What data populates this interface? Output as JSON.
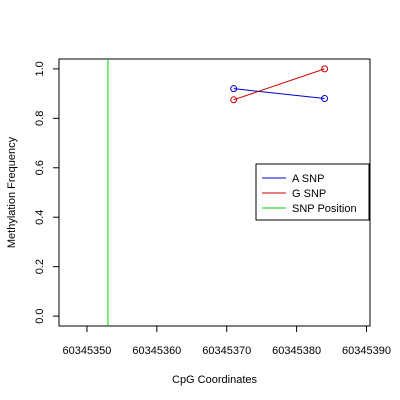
{
  "chart_data": {
    "type": "line",
    "title": "",
    "xlabel": "CpG Coordinates",
    "ylabel": "Methylation Frequency",
    "xlim": [
      60345346,
      60345390.5
    ],
    "ylim": [
      -0.04,
      1.04
    ],
    "x_ticks": [
      60345350,
      60345360,
      60345370,
      60345380,
      60345390
    ],
    "x_tick_labels": [
      "60345350",
      "60345360",
      "60345370",
      "60345380",
      "60345390"
    ],
    "y_ticks": [
      0.0,
      0.2,
      0.4,
      0.6,
      0.8,
      1.0
    ],
    "y_tick_labels": [
      "0.0",
      "0.2",
      "0.4",
      "0.6",
      "0.8",
      "1.0"
    ],
    "grid": false,
    "legend_position": "right",
    "series": [
      {
        "name": "A SNP",
        "color": "#0000cc",
        "x": [
          60345371,
          60345384
        ],
        "y": [
          0.92,
          0.88
        ]
      },
      {
        "name": "G SNP",
        "color": "#cc0000",
        "x": [
          60345371,
          60345384
        ],
        "y": [
          0.875,
          1.0
        ]
      }
    ],
    "vlines": [
      {
        "name": "SNP Position",
        "color": "#00cc00",
        "x": 60345353
      }
    ]
  }
}
